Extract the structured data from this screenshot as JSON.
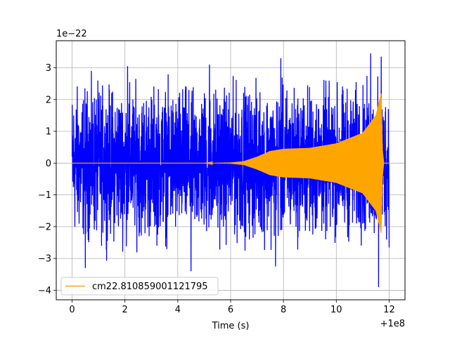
{
  "chart_data": {
    "type": "line",
    "title": "",
    "xlabel": "Time (s)",
    "ylabel": "",
    "x_offset_label": "+1e8",
    "y_scale_label": "1e−22",
    "xlim": [
      -0.6,
      12.6
    ],
    "ylim": [
      -4.3,
      3.85
    ],
    "x_ticks": [
      0,
      2,
      4,
      6,
      8,
      10,
      12
    ],
    "x_tick_labels": [
      "0",
      "2",
      "4",
      "6",
      "8",
      "10",
      "12"
    ],
    "y_ticks": [
      3,
      2,
      1,
      0,
      -1,
      -2,
      -3,
      -4
    ],
    "y_tick_labels": [
      "3",
      "2",
      "1",
      "0",
      "−1",
      "−2",
      "−3",
      "−4"
    ],
    "grid": true,
    "legend_position": "lower-left",
    "series": [
      {
        "color": "#0000ff",
        "x_range": [
          0,
          12
        ],
        "typical_amplitude": 1.6,
        "notable_peaks": [
          {
            "x": 2.1,
            "y": 3.05
          },
          {
            "x": 5.2,
            "y": 3.1
          },
          {
            "x": 7.9,
            "y": 3.3
          },
          {
            "x": 11.3,
            "y": 3.45
          },
          {
            "x": 11.7,
            "y": 3.35
          },
          {
            "x": 0.5,
            "y": -3.3
          },
          {
            "x": 4.5,
            "y": -3.4
          },
          {
            "x": 7.7,
            "y": -3.25
          },
          {
            "x": 11.6,
            "y": -3.9
          }
        ]
      },
      {
        "name": "cm22.810859001121795",
        "color": "#ffa500",
        "x_range": [
          0,
          12
        ],
        "envelope": [
          {
            "x": 0,
            "y": 0.0
          },
          {
            "x": 5.0,
            "y": 0.0
          },
          {
            "x": 6.0,
            "y": 0.02
          },
          {
            "x": 6.5,
            "y": 0.06
          },
          {
            "x": 7.0,
            "y": 0.2
          },
          {
            "x": 7.5,
            "y": 0.38
          },
          {
            "x": 8.0,
            "y": 0.45
          },
          {
            "x": 9.0,
            "y": 0.48
          },
          {
            "x": 10.0,
            "y": 0.62
          },
          {
            "x": 11.0,
            "y": 0.95
          },
          {
            "x": 11.5,
            "y": 1.5
          },
          {
            "x": 11.7,
            "y": 2.2
          },
          {
            "x": 11.75,
            "y": 0.4
          },
          {
            "x": 11.8,
            "y": 0.0
          },
          {
            "x": 12.0,
            "y": 0.0
          }
        ]
      }
    ]
  }
}
